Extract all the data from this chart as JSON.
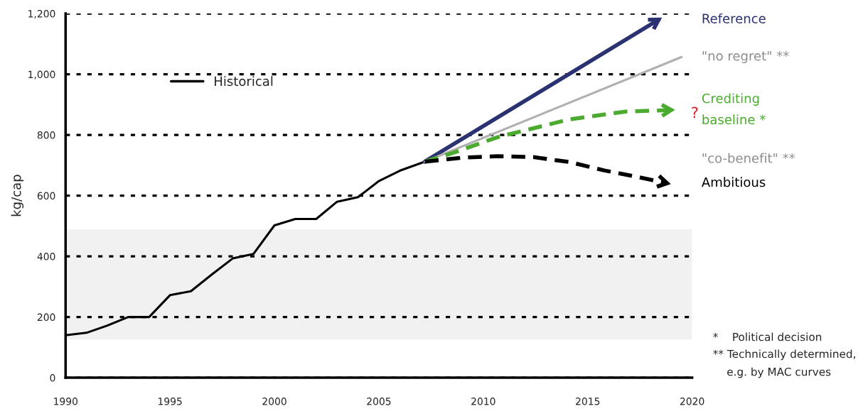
{
  "chart_data": {
    "type": "line",
    "ylabel": "kg/cap",
    "xlim": [
      1990,
      2020
    ],
    "xticks": [
      1990,
      1995,
      2000,
      2005,
      2010,
      2015,
      2020
    ],
    "ylim": [
      0,
      1200
    ],
    "yticks": [
      0,
      200,
      400,
      600,
      800,
      {
        "value": 1000,
        "label": "1,000"
      },
      {
        "value": 1200,
        "label": "1,200"
      }
    ],
    "grid": "y",
    "legend": "top left",
    "series": [
      {
        "name": "Historical",
        "color": "#000000",
        "line_style": "solid",
        "x": [
          1990,
          1991,
          1992,
          1993,
          1994,
          1995,
          1996,
          1997,
          1998,
          1999,
          2000,
          2001,
          2002,
          2003,
          2004,
          2005,
          2006,
          2007.2
        ],
        "values": [
          140,
          148,
          172,
          200,
          200,
          272,
          285,
          340,
          393,
          408,
          502,
          523,
          523,
          580,
          595,
          648,
          682,
          712
        ]
      },
      {
        "name": "Reference",
        "color": "#2b3272",
        "line_style": "solid",
        "x": [
          2007.2,
          2018.4
        ],
        "values": [
          712,
          1180
        ]
      },
      {
        "name": "\"no regret\" **",
        "color": "#b0b0b0",
        "line_style": "solid",
        "x": [
          2007.2,
          2019.5
        ],
        "values": [
          712,
          1057
        ]
      },
      {
        "name": "Crediting\nbaseline *",
        "color": "#4aab2e",
        "line_style": "dashed",
        "x": [
          2007.2,
          2008.6,
          2010.7,
          2014.1,
          2016.8,
          2019.0
        ],
        "values": [
          712,
          742,
          793,
          851,
          877,
          882
        ]
      },
      {
        "name": "Ambitious",
        "color": "#000000",
        "line_style": "dashed",
        "x": [
          2007.2,
          2009.0,
          2010.7,
          2012.4,
          2014.1,
          2015.8,
          2017.5,
          2018.8
        ],
        "values": [
          712,
          725,
          730,
          727,
          711,
          683,
          660,
          641
        ]
      }
    ],
    "bands": [
      {
        "axis": "y",
        "from": 126,
        "to": 489,
        "color": "#f1f1f1"
      }
    ],
    "annotations": [
      "\"co-benefit\" **",
      "?",
      "*    Political decision",
      "** Technically determined,\n    e.g. by MAC curves"
    ]
  }
}
